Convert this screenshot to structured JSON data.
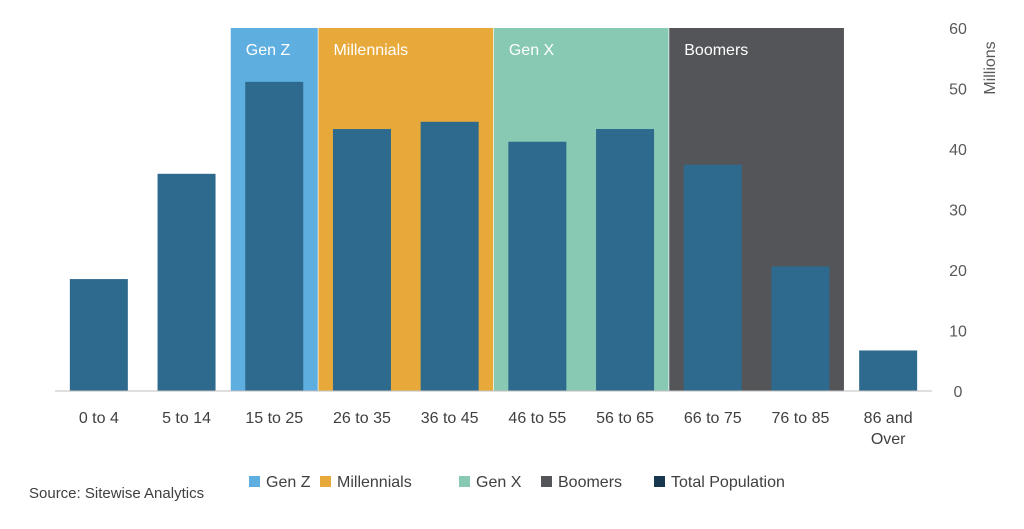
{
  "chart_data": {
    "type": "bar",
    "categories": [
      "0 to 4",
      "5 to 14",
      "15 to 25",
      "26 to 35",
      "36 to 45",
      "46 to 55",
      "56 to 65",
      "66 to 75",
      "76 to 85",
      [
        "86 and",
        "Over"
      ]
    ],
    "series": [
      {
        "name": "Total Population",
        "values": [
          18.5,
          35.9,
          51.1,
          43.3,
          44.5,
          41.2,
          43.3,
          37.4,
          20.6,
          6.7
        ]
      }
    ],
    "bands": [
      {
        "name": "Gen Z",
        "from": "15 to 25",
        "to": "15 to 25",
        "color": "#5eaee0"
      },
      {
        "name": "Millennials",
        "from": "26 to 35",
        "to": "36 to 45",
        "color": "#e8a93b"
      },
      {
        "name": "Gen X",
        "from": "46 to 55",
        "to": "56 to 65",
        "color": "#87c9b3"
      },
      {
        "name": "Boomers",
        "from": "66 to 75",
        "to": "76 to 85",
        "color": "#545559"
      }
    ],
    "bar_color": "#2e6a8e",
    "ylabel": "Millions",
    "ylim": [
      0,
      60
    ],
    "yticks": [
      0,
      10,
      20,
      30,
      40,
      50,
      60
    ],
    "legend": [
      {
        "label": "Gen Z",
        "color": "#5eaee0"
      },
      {
        "label": "Millennials",
        "color": "#e8a93b"
      },
      {
        "label": "Gen X",
        "color": "#87c9b3"
      },
      {
        "label": "Boomers",
        "color": "#545559"
      },
      {
        "label": "Total Population",
        "color": "#17374f"
      }
    ],
    "legend_position": "bottom",
    "grid": false
  },
  "footer": {
    "source": "Source: Sitewise Analytics"
  }
}
